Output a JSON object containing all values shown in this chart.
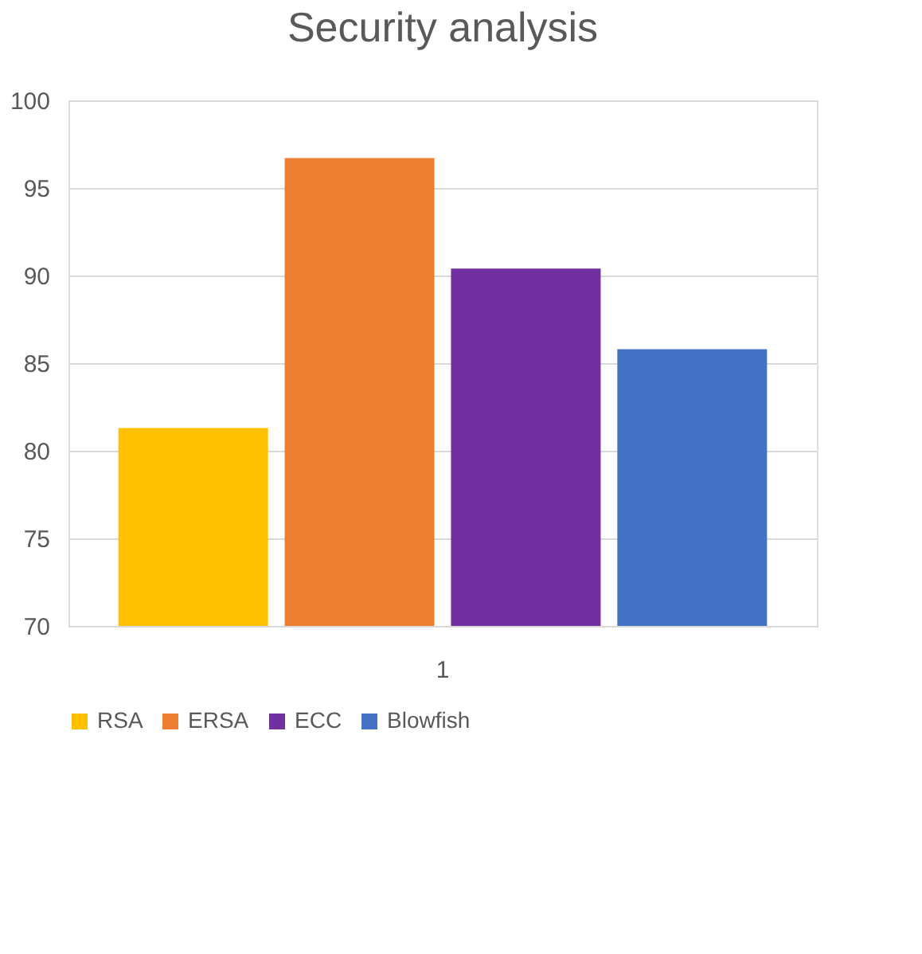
{
  "chart_data": {
    "type": "bar",
    "title": "Security analysis",
    "categories": [
      "1"
    ],
    "series": [
      {
        "name": "RSA",
        "color": "#ffc000",
        "values": [
          81.3
        ]
      },
      {
        "name": "ERSA",
        "color": "#ed7d31",
        "values": [
          96.7
        ]
      },
      {
        "name": "ECC",
        "color": "#7030a0",
        "values": [
          90.4
        ]
      },
      {
        "name": "Blowfish",
        "color": "#4472c4",
        "values": [
          85.8
        ]
      }
    ],
    "ylim": [
      70,
      100
    ],
    "yticks": [
      70,
      75,
      80,
      85,
      90,
      95,
      100
    ],
    "grid": "y",
    "legend": "bottom"
  }
}
